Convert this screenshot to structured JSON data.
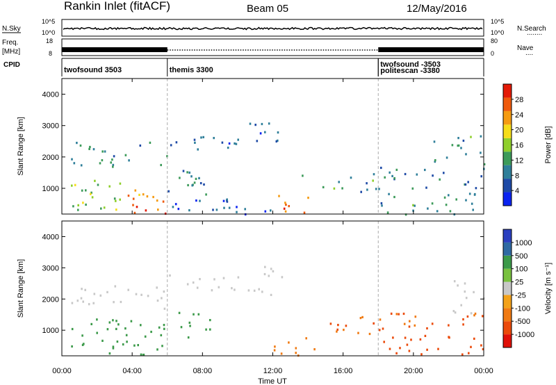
{
  "header": {
    "station": "Rankin Inlet (fitACF)",
    "beam": "Beam 05",
    "date": "12/May/2016"
  },
  "strips": {
    "nsky_label": "N.Sky",
    "nsearch_label": "N.Search",
    "nsearch_dots": "........",
    "freq_label": "Freq.",
    "freq_unit": "[MHz]",
    "nave_label": "Nave",
    "nave_dots": "....",
    "cpid_label": "CPID",
    "noise_ticks_left": [
      "10^5",
      "10^0"
    ],
    "noise_ticks_right": [
      "10^5",
      "10^0"
    ],
    "freq_ticks_left": [
      "18",
      "8"
    ],
    "nave_ticks_right": [
      "80",
      "0"
    ]
  },
  "cpid_segments": [
    {
      "label": "twofsound 3503",
      "start_h": 0,
      "end_h": 6
    },
    {
      "label": "themis 3300",
      "start_h": 6,
      "end_h": 18
    },
    {
      "label": "twofsound -3503",
      "start_h": 18,
      "end_h": 24
    },
    {
      "label": "politescan -3380",
      "start_h": 18,
      "end_h": 18.1
    }
  ],
  "colors": {
    "power_scale": [
      "#0b24f0",
      "#1e4aa6",
      "#2f7f9a",
      "#3d9b5a",
      "#8fcf2c",
      "#f6dd19",
      "#f59b12",
      "#ef5a0c",
      "#e41a07"
    ],
    "velocity_scale": [
      "#2a3fbf",
      "#2f6aa3",
      "#3c9a4a",
      "#79c13f",
      "#c8c8c8",
      "#f3a21a",
      "#f07a12",
      "#eb4a0a",
      "#e01008"
    ]
  },
  "chart_data": [
    {
      "type": "heatmap",
      "title": "Power",
      "xlabel": "Time UT",
      "ylabel": "Slant Range [km]",
      "xlim": [
        0,
        24
      ],
      "ylim": [
        180,
        4500
      ],
      "xticks": [
        "00:00",
        "04:00",
        "08:00",
        "12:00",
        "16:00",
        "20:00",
        "00:00"
      ],
      "yticks": [
        "1000",
        "2000",
        "3000",
        "4000"
      ],
      "colorbar_label": "Power [dB]",
      "colorbar_ticks": [
        "4",
        "8",
        "12",
        "16",
        "20",
        "24",
        "28"
      ],
      "clim": [
        0,
        30
      ],
      "regions": [
        {
          "t0": 0.5,
          "t1": 6.0,
          "r0": 1700,
          "r1": 2500,
          "value": 10
        },
        {
          "t0": 0.5,
          "t1": 3.5,
          "r0": 300,
          "r1": 1400,
          "value": 14
        },
        {
          "t0": 3.5,
          "t1": 6.0,
          "r0": 300,
          "r1": 1000,
          "value": 22
        },
        {
          "t0": 3.8,
          "t1": 6.0,
          "r0": 180,
          "r1": 450,
          "value": 28
        },
        {
          "t0": 6.0,
          "t1": 10.0,
          "r0": 2200,
          "r1": 2800,
          "value": 6
        },
        {
          "t0": 6.0,
          "t1": 9.0,
          "r0": 800,
          "r1": 1600,
          "value": 8
        },
        {
          "t0": 6.0,
          "t1": 12.0,
          "r0": 180,
          "r1": 700,
          "value": 6
        },
        {
          "t0": 10.5,
          "t1": 12.5,
          "r0": 2300,
          "r1": 3100,
          "value": 6
        },
        {
          "t0": 12.0,
          "t1": 14.5,
          "r0": 180,
          "r1": 800,
          "value": 24
        },
        {
          "t0": 13.5,
          "t1": 18.0,
          "r0": 900,
          "r1": 1500,
          "value": 10
        },
        {
          "t0": 18.0,
          "t1": 24.0,
          "r0": 1000,
          "r1": 1700,
          "value": 8
        },
        {
          "t0": 18.0,
          "t1": 24.0,
          "r0": 180,
          "r1": 900,
          "value": 10
        },
        {
          "t0": 21.0,
          "t1": 24.0,
          "r0": 1800,
          "r1": 2700,
          "value": 10
        }
      ]
    },
    {
      "type": "heatmap",
      "title": "Velocity",
      "xlabel": "Time UT",
      "ylabel": "Slant Range [km]",
      "xlim": [
        0,
        24
      ],
      "ylim": [
        180,
        4500
      ],
      "xticks": [
        "00:00",
        "04:00",
        "08:00",
        "12:00",
        "16:00",
        "20:00",
        "00:00"
      ],
      "yticks": [
        "1000",
        "2000",
        "3000",
        "4000"
      ],
      "colorbar_label": "Velocity [m s⁻¹]",
      "colorbar_ticks": [
        "1000",
        "500",
        "100",
        "25",
        "-25",
        "-100",
        "-500",
        "-1000"
      ],
      "regions": [
        {
          "t0": 0.5,
          "t1": 6.0,
          "r0": 1700,
          "r1": 2500,
          "value": 0
        },
        {
          "t0": 0.5,
          "t1": 6.0,
          "r0": 180,
          "r1": 1400,
          "value": 150
        },
        {
          "t0": 6.0,
          "t1": 10.0,
          "r0": 2200,
          "r1": 2800,
          "value": 0
        },
        {
          "t0": 6.5,
          "t1": 9.0,
          "r0": 800,
          "r1": 1600,
          "value": 200
        },
        {
          "t0": 10.5,
          "t1": 12.5,
          "r0": 2000,
          "r1": 3100,
          "value": 0
        },
        {
          "t0": 12.0,
          "t1": 14.5,
          "r0": 180,
          "r1": 800,
          "value": -200
        },
        {
          "t0": 15.0,
          "t1": 18.0,
          "r0": 900,
          "r1": 1500,
          "value": -300
        },
        {
          "t0": 18.0,
          "t1": 24.0,
          "r0": 1000,
          "r1": 1600,
          "value": -300
        },
        {
          "t0": 18.0,
          "t1": 24.0,
          "r0": 180,
          "r1": 900,
          "value": -400
        },
        {
          "t0": 22.0,
          "t1": 24.0,
          "r0": 1500,
          "r1": 2700,
          "value": 0
        }
      ]
    }
  ]
}
